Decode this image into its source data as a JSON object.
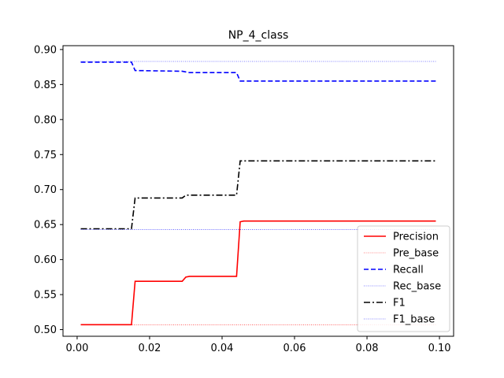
{
  "chart_data": {
    "type": "line",
    "title": "NP_4_class",
    "xlabel": "",
    "ylabel": "",
    "xlim": [
      -0.0039,
      0.1039
    ],
    "ylim": [
      0.4905,
      0.9055
    ],
    "xticks": [
      0.0,
      0.02,
      0.04,
      0.06,
      0.08,
      0.1
    ],
    "xtick_labels": [
      "0.00",
      "0.02",
      "0.04",
      "0.06",
      "0.08",
      "0.10"
    ],
    "yticks": [
      0.5,
      0.55,
      0.6,
      0.65,
      0.7,
      0.75,
      0.8,
      0.85,
      0.9
    ],
    "ytick_labels": [
      "0.50",
      "0.55",
      "0.60",
      "0.65",
      "0.70",
      "0.75",
      "0.80",
      "0.85",
      "0.90"
    ],
    "grid": false,
    "legend_position": "lower-right",
    "series": [
      {
        "name": "Precision",
        "color": "#ff0000",
        "style": "solid",
        "x": [
          0.001,
          0.015,
          0.016,
          0.029,
          0.03,
          0.031,
          0.044,
          0.045,
          0.046,
          0.099
        ],
        "y": [
          0.507,
          0.507,
          0.569,
          0.569,
          0.575,
          0.576,
          0.576,
          0.654,
          0.655,
          0.655
        ]
      },
      {
        "name": "Pre_base",
        "color": "#ff0000",
        "style": "dotted",
        "x": [
          0.001,
          0.099
        ],
        "y": [
          0.507,
          0.507
        ]
      },
      {
        "name": "Recall",
        "color": "#0000ff",
        "style": "dashed",
        "x": [
          0.001,
          0.015,
          0.016,
          0.029,
          0.031,
          0.044,
          0.045,
          0.099
        ],
        "y": [
          0.882,
          0.882,
          0.87,
          0.869,
          0.867,
          0.867,
          0.855,
          0.855
        ]
      },
      {
        "name": "Rec_base",
        "color": "#0000ff",
        "style": "dotted",
        "x": [
          0.001,
          0.099
        ],
        "y": [
          0.883,
          0.883
        ]
      },
      {
        "name": "F1",
        "color": "#000000",
        "style": "dashdot",
        "x": [
          0.001,
          0.015,
          0.016,
          0.029,
          0.03,
          0.044,
          0.045,
          0.099
        ],
        "y": [
          0.644,
          0.644,
          0.688,
          0.688,
          0.692,
          0.692,
          0.741,
          0.741
        ]
      },
      {
        "name": "F1_base",
        "color": "#0000ff",
        "style": "dotted",
        "x": [
          0.001,
          0.099
        ],
        "y": [
          0.643,
          0.643
        ]
      }
    ]
  }
}
